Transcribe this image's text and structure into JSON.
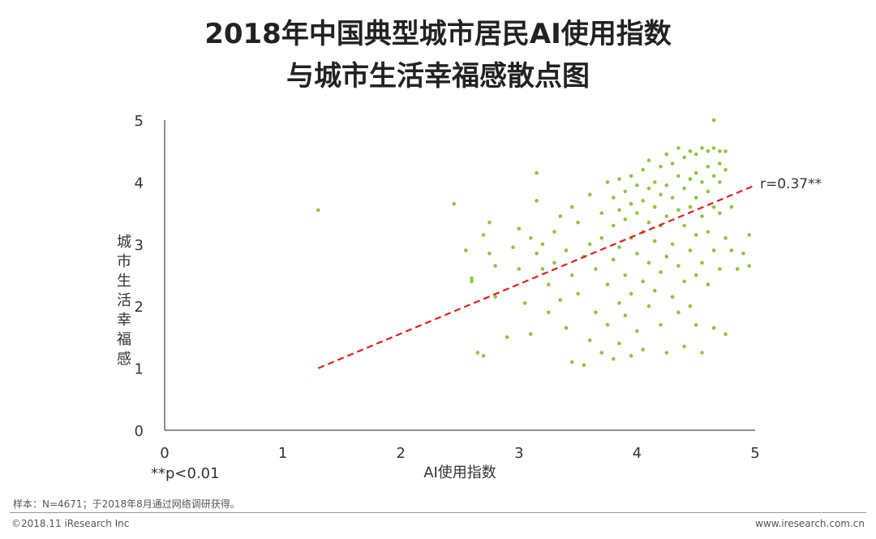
{
  "title_line1": "2018年中国典型城市居民AI使用指数",
  "title_line2": "与城市生活幸福感散点图",
  "note": "样本：N=4671；于2018年8月通过网络调研获得。",
  "footer_left": "©2018.11 iResearch Inc",
  "footer_right": "www.iresearch.com.cn",
  "significance": "**p<0.01",
  "chart_data": {
    "type": "scatter",
    "title": "2018年中国典型城市居民AI使用指数与城市生活幸福感散点图",
    "xlabel": "AI使用指数",
    "ylabel": "城市生活幸福感",
    "xlim": [
      0,
      5
    ],
    "ylim": [
      0,
      5
    ],
    "xticks": [
      "0",
      "1",
      "2",
      "3",
      "4",
      "5"
    ],
    "yticks": [
      "0",
      "1",
      "2",
      "3",
      "4",
      "5"
    ],
    "grid": false,
    "point_color": "#8cc63f",
    "trend_color": "#e02020",
    "annotation": "r=0.37**",
    "trendline": {
      "x": [
        1.3,
        5.0
      ],
      "y": [
        1.0,
        3.95
      ]
    },
    "points": [
      [
        1.3,
        3.55
      ],
      [
        2.45,
        3.65
      ],
      [
        4.65,
        5.0
      ],
      [
        2.55,
        2.9
      ],
      [
        2.6,
        2.45
      ],
      [
        2.6,
        2.4
      ],
      [
        2.65,
        1.25
      ],
      [
        2.7,
        1.2
      ],
      [
        2.7,
        3.15
      ],
      [
        2.75,
        3.35
      ],
      [
        2.75,
        2.85
      ],
      [
        2.8,
        2.65
      ],
      [
        2.8,
        2.15
      ],
      [
        2.9,
        1.5
      ],
      [
        2.95,
        2.95
      ],
      [
        3.0,
        3.25
      ],
      [
        3.0,
        2.6
      ],
      [
        3.05,
        2.05
      ],
      [
        3.1,
        3.1
      ],
      [
        3.1,
        1.55
      ],
      [
        3.15,
        4.15
      ],
      [
        3.15,
        3.7
      ],
      [
        3.15,
        2.85
      ],
      [
        3.2,
        3.0
      ],
      [
        3.2,
        2.6
      ],
      [
        3.25,
        2.35
      ],
      [
        3.25,
        1.9
      ],
      [
        3.3,
        3.2
      ],
      [
        3.3,
        2.7
      ],
      [
        3.35,
        3.45
      ],
      [
        3.35,
        2.1
      ],
      [
        3.4,
        2.9
      ],
      [
        3.4,
        1.65
      ],
      [
        3.45,
        3.6
      ],
      [
        3.45,
        2.5
      ],
      [
        3.45,
        1.1
      ],
      [
        3.5,
        3.35
      ],
      [
        3.5,
        2.2
      ],
      [
        3.55,
        2.8
      ],
      [
        3.55,
        1.05
      ],
      [
        3.6,
        3.8
      ],
      [
        3.6,
        3.0
      ],
      [
        3.6,
        1.45
      ],
      [
        3.65,
        2.6
      ],
      [
        3.65,
        1.9
      ],
      [
        3.7,
        3.5
      ],
      [
        3.7,
        3.1
      ],
      [
        3.7,
        1.25
      ],
      [
        3.75,
        4.0
      ],
      [
        3.75,
        2.35
      ],
      [
        3.75,
        1.7
      ],
      [
        3.8,
        3.75
      ],
      [
        3.8,
        3.3
      ],
      [
        3.8,
        2.75
      ],
      [
        3.8,
        1.15
      ],
      [
        3.85,
        4.05
      ],
      [
        3.85,
        3.55
      ],
      [
        3.85,
        2.95
      ],
      [
        3.85,
        2.05
      ],
      [
        3.85,
        1.4
      ],
      [
        3.9,
        3.85
      ],
      [
        3.9,
        3.4
      ],
      [
        3.9,
        2.5
      ],
      [
        3.9,
        1.85
      ],
      [
        3.95,
        4.1
      ],
      [
        3.95,
        3.65
      ],
      [
        3.95,
        3.1
      ],
      [
        3.95,
        2.2
      ],
      [
        3.95,
        1.2
      ],
      [
        4.0,
        3.95
      ],
      [
        4.0,
        3.5
      ],
      [
        4.0,
        2.85
      ],
      [
        4.0,
        1.6
      ],
      [
        4.05,
        4.2
      ],
      [
        4.05,
        3.7
      ],
      [
        4.05,
        3.2
      ],
      [
        4.05,
        2.4
      ],
      [
        4.05,
        1.3
      ],
      [
        4.1,
        4.35
      ],
      [
        4.1,
        3.9
      ],
      [
        4.1,
        3.35
      ],
      [
        4.1,
        2.7
      ],
      [
        4.1,
        2.0
      ],
      [
        4.15,
        4.0
      ],
      [
        4.15,
        3.6
      ],
      [
        4.15,
        3.05
      ],
      [
        4.15,
        2.25
      ],
      [
        4.2,
        4.25
      ],
      [
        4.2,
        3.8
      ],
      [
        4.2,
        3.3
      ],
      [
        4.2,
        2.55
      ],
      [
        4.2,
        1.7
      ],
      [
        4.25,
        4.45
      ],
      [
        4.25,
        3.95
      ],
      [
        4.25,
        3.45
      ],
      [
        4.25,
        2.8
      ],
      [
        4.25,
        1.25
      ],
      [
        4.3,
        4.3
      ],
      [
        4.3,
        3.75
      ],
      [
        4.3,
        3.0
      ],
      [
        4.3,
        2.15
      ],
      [
        4.35,
        4.55
      ],
      [
        4.35,
        4.1
      ],
      [
        4.35,
        3.55
      ],
      [
        4.35,
        2.65
      ],
      [
        4.35,
        1.9
      ],
      [
        4.4,
        4.4
      ],
      [
        4.4,
        3.9
      ],
      [
        4.4,
        3.3
      ],
      [
        4.4,
        2.4
      ],
      [
        4.4,
        1.35
      ],
      [
        4.45,
        4.5
      ],
      [
        4.45,
        4.05
      ],
      [
        4.45,
        3.6
      ],
      [
        4.45,
        2.9
      ],
      [
        4.45,
        2.0
      ],
      [
        4.5,
        4.45
      ],
      [
        4.5,
        4.15
      ],
      [
        4.5,
        3.75
      ],
      [
        4.5,
        3.15
      ],
      [
        4.5,
        2.5
      ],
      [
        4.5,
        1.7
      ],
      [
        4.55,
        4.55
      ],
      [
        4.55,
        4.0
      ],
      [
        4.55,
        3.45
      ],
      [
        4.55,
        2.7
      ],
      [
        4.55,
        1.25
      ],
      [
        4.6,
        4.5
      ],
      [
        4.6,
        4.25
      ],
      [
        4.6,
        3.85
      ],
      [
        4.6,
        3.2
      ],
      [
        4.6,
        2.35
      ],
      [
        4.65,
        4.55
      ],
      [
        4.65,
        4.1
      ],
      [
        4.65,
        3.6
      ],
      [
        4.65,
        2.9
      ],
      [
        4.65,
        1.65
      ],
      [
        4.7,
        4.5
      ],
      [
        4.7,
        4.3
      ],
      [
        4.7,
        4.0
      ],
      [
        4.7,
        3.5
      ],
      [
        4.7,
        2.6
      ],
      [
        4.75,
        4.5
      ],
      [
        4.75,
        4.2
      ],
      [
        4.75,
        3.1
      ],
      [
        4.75,
        1.55
      ],
      [
        4.8,
        3.6
      ],
      [
        4.8,
        2.9
      ],
      [
        4.85,
        2.6
      ],
      [
        4.9,
        2.85
      ],
      [
        4.95,
        3.15
      ],
      [
        4.95,
        2.65
      ]
    ]
  }
}
